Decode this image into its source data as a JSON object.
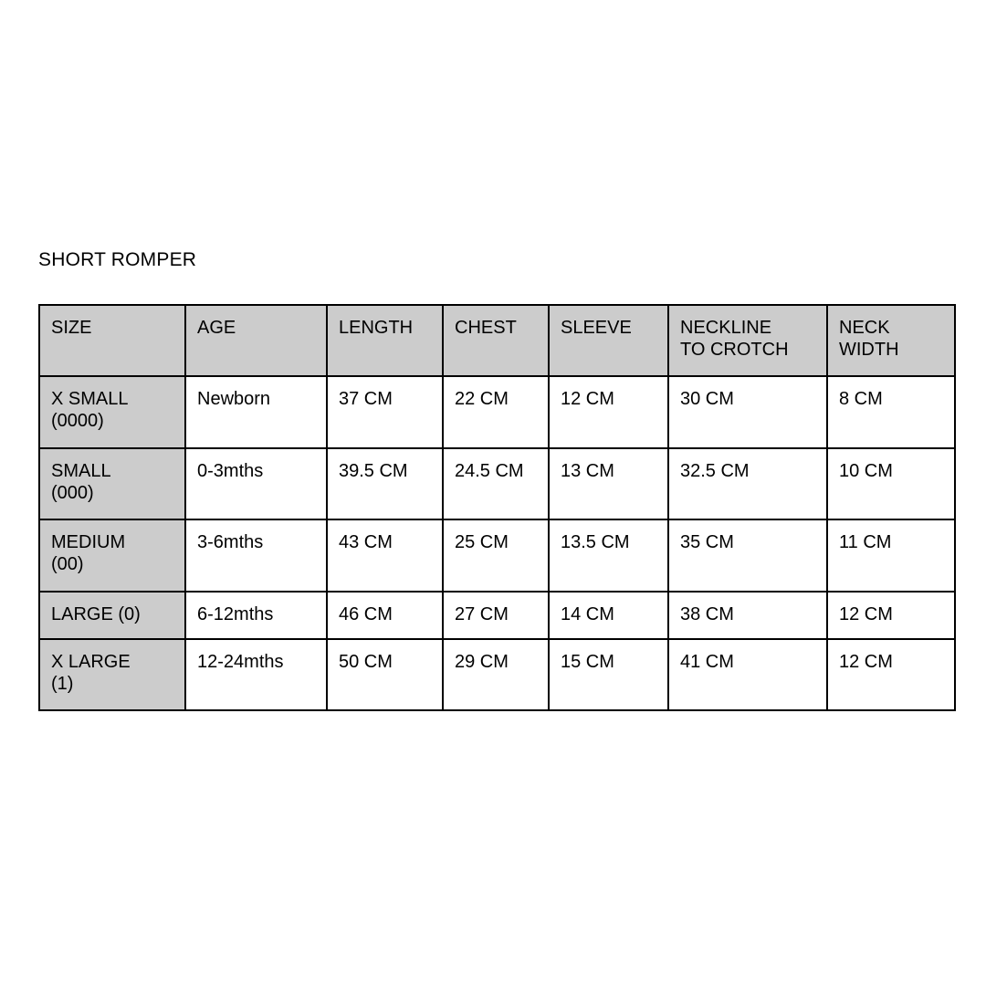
{
  "page": {
    "title": "SHORT ROMPER"
  },
  "colors": {
    "header_bg": "#cccccc",
    "size_column_bg": "#cccccc",
    "cell_bg": "#ffffff",
    "border": "#000000",
    "text": "#000000"
  },
  "size_chart": {
    "columns": [
      "SIZE",
      "AGE",
      "LENGTH",
      "CHEST",
      "SLEEVE",
      "NECKLINE\nTO CROTCH",
      "NECK\nWIDTH"
    ],
    "rows": [
      {
        "size": "X SMALL\n(0000)",
        "age": "Newborn",
        "length": "37 CM",
        "chest": "22 CM",
        "sleeve": "12 CM",
        "neckline_to_crotch": "30 CM",
        "neck_width": "8 CM"
      },
      {
        "size": "SMALL\n(000)",
        "age": "0-3mths",
        "length": "39.5 CM",
        "chest": "24.5 CM",
        "sleeve": "13 CM",
        "neckline_to_crotch": "32.5 CM",
        "neck_width": "10 CM"
      },
      {
        "size": "MEDIUM\n(00)",
        "age": "3-6mths",
        "length": "43 CM",
        "chest": "25 CM",
        "sleeve": "13.5 CM",
        "neckline_to_crotch": "35 CM",
        "neck_width": "11 CM"
      },
      {
        "size": "LARGE (0)",
        "age": "6-12mths",
        "length": "46 CM",
        "chest": "27 CM",
        "sleeve": "14 CM",
        "neckline_to_crotch": "38 CM",
        "neck_width": "12 CM"
      },
      {
        "size": "X LARGE\n(1)",
        "age": "12-24mths",
        "length": "50 CM",
        "chest": "29 CM",
        "sleeve": "15 CM",
        "neckline_to_crotch": "41 CM",
        "neck_width": "12 CM"
      }
    ],
    "column_keys": [
      "size",
      "age",
      "length",
      "chest",
      "sleeve",
      "neckline_to_crotch",
      "neck_width"
    ]
  }
}
